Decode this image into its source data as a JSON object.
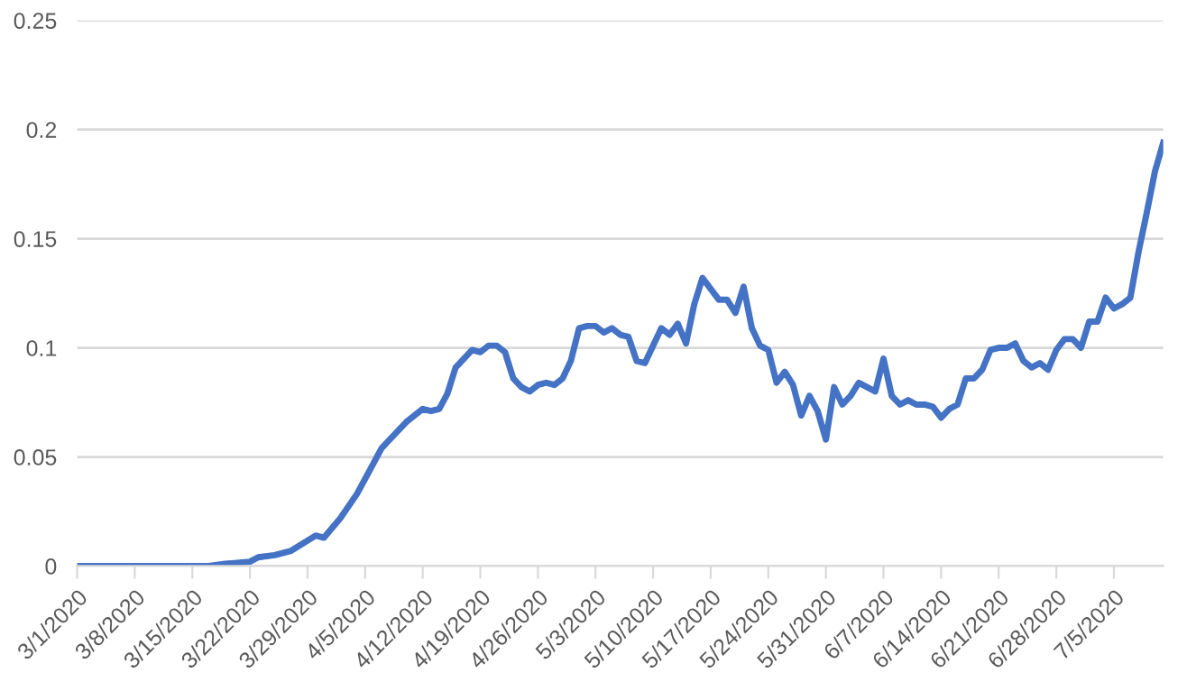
{
  "chart_data": {
    "type": "line",
    "color": "#4472c4",
    "line_style": "solid",
    "marker": "none",
    "grid": "y",
    "x": [
      "2020-03-01",
      "2020-03-17",
      "2020-03-19",
      "2020-03-22",
      "2020-03-23",
      "2020-03-25",
      "2020-03-27",
      "2020-03-30",
      "2020-03-31",
      "2020-04-02",
      "2020-04-04",
      "2020-04-06",
      "2020-04-07",
      "2020-04-08",
      "2020-04-10",
      "2020-04-12",
      "2020-04-13",
      "2020-04-14",
      "2020-04-15",
      "2020-04-16",
      "2020-04-18",
      "2020-04-19",
      "2020-04-20",
      "2020-04-21",
      "2020-04-22",
      "2020-04-23",
      "2020-04-24",
      "2020-04-25",
      "2020-04-26",
      "2020-04-27",
      "2020-04-28",
      "2020-04-29",
      "2020-04-30",
      "2020-05-01",
      "2020-05-02",
      "2020-05-03",
      "2020-05-04",
      "2020-05-05",
      "2020-05-06",
      "2020-05-07",
      "2020-05-08",
      "2020-05-09",
      "2020-05-11",
      "2020-05-12",
      "2020-05-13",
      "2020-05-14",
      "2020-05-15",
      "2020-05-16",
      "2020-05-18",
      "2020-05-19",
      "2020-05-20",
      "2020-05-21",
      "2020-05-22",
      "2020-05-23",
      "2020-05-24",
      "2020-05-25",
      "2020-05-26",
      "2020-05-27",
      "2020-05-28",
      "2020-05-29",
      "2020-05-30",
      "2020-05-31",
      "2020-06-01",
      "2020-06-02",
      "2020-06-03",
      "2020-06-04",
      "2020-06-05",
      "2020-06-06",
      "2020-06-07",
      "2020-06-08",
      "2020-06-09",
      "2020-06-10",
      "2020-06-11",
      "2020-06-12",
      "2020-06-13",
      "2020-06-14",
      "2020-06-15",
      "2020-06-16",
      "2020-06-17",
      "2020-06-18",
      "2020-06-19",
      "2020-06-20",
      "2020-06-21",
      "2020-06-22",
      "2020-06-23",
      "2020-06-24",
      "2020-06-25",
      "2020-06-26",
      "2020-06-27",
      "2020-06-28",
      "2020-06-29",
      "2020-06-30",
      "2020-07-01",
      "2020-07-02",
      "2020-07-03",
      "2020-07-04",
      "2020-07-05",
      "2020-07-06",
      "2020-07-07",
      "2020-07-08",
      "2020-07-09",
      "2020-07-10",
      "2020-07-11"
    ],
    "values": [
      0,
      0,
      0.001,
      0.002,
      0.004,
      0.005,
      0.007,
      0.014,
      0.013,
      0.022,
      0.033,
      0.047,
      0.054,
      0.058,
      0.066,
      0.072,
      0.071,
      0.072,
      0.079,
      0.091,
      0.099,
      0.098,
      0.101,
      0.101,
      0.098,
      0.086,
      0.082,
      0.08,
      0.083,
      0.084,
      0.083,
      0.086,
      0.094,
      0.109,
      0.11,
      0.11,
      0.107,
      0.109,
      0.106,
      0.105,
      0.094,
      0.093,
      0.109,
      0.106,
      0.111,
      0.102,
      0.12,
      0.132,
      0.122,
      0.122,
      0.116,
      0.128,
      0.109,
      0.101,
      0.099,
      0.084,
      0.089,
      0.083,
      0.069,
      0.078,
      0.071,
      0.058,
      0.082,
      0.074,
      0.078,
      0.084,
      0.082,
      0.08,
      0.095,
      0.078,
      0.074,
      0.076,
      0.074,
      0.074,
      0.073,
      0.068,
      0.072,
      0.074,
      0.086,
      0.086,
      0.09,
      0.099,
      0.1,
      0.1,
      0.102,
      0.094,
      0.091,
      0.093,
      0.09,
      0.099,
      0.104,
      0.104,
      0.1,
      0.112,
      0.112,
      0.123,
      0.118,
      0.12,
      0.123,
      0.144,
      0.162,
      0.181,
      0.194
    ],
    "xlim": [
      "2020-03-01",
      "2020-07-11"
    ],
    "xticks": [
      {
        "value": "2020-03-01",
        "label": "3/1/2020"
      },
      {
        "value": "2020-03-08",
        "label": "3/8/2020"
      },
      {
        "value": "2020-03-15",
        "label": "3/15/2020"
      },
      {
        "value": "2020-03-22",
        "label": "3/22/2020"
      },
      {
        "value": "2020-03-29",
        "label": "3/29/2020"
      },
      {
        "value": "2020-04-05",
        "label": "4/5/2020"
      },
      {
        "value": "2020-04-12",
        "label": "4/12/2020"
      },
      {
        "value": "2020-04-19",
        "label": "4/19/2020"
      },
      {
        "value": "2020-04-26",
        "label": "4/26/2020"
      },
      {
        "value": "2020-05-03",
        "label": "5/3/2020"
      },
      {
        "value": "2020-05-10",
        "label": "5/10/2020"
      },
      {
        "value": "2020-05-17",
        "label": "5/17/2020"
      },
      {
        "value": "2020-05-24",
        "label": "5/24/2020"
      },
      {
        "value": "2020-05-31",
        "label": "5/31/2020"
      },
      {
        "value": "2020-06-07",
        "label": "6/7/2020"
      },
      {
        "value": "2020-06-14",
        "label": "6/14/2020"
      },
      {
        "value": "2020-06-21",
        "label": "6/21/2020"
      },
      {
        "value": "2020-06-28",
        "label": "6/28/2020"
      },
      {
        "value": "2020-07-05",
        "label": "7/5/2020"
      }
    ],
    "ylim": [
      0,
      0.25
    ],
    "yticks": [
      0,
      0.05,
      0.1,
      0.15,
      0.2,
      0.25
    ]
  }
}
